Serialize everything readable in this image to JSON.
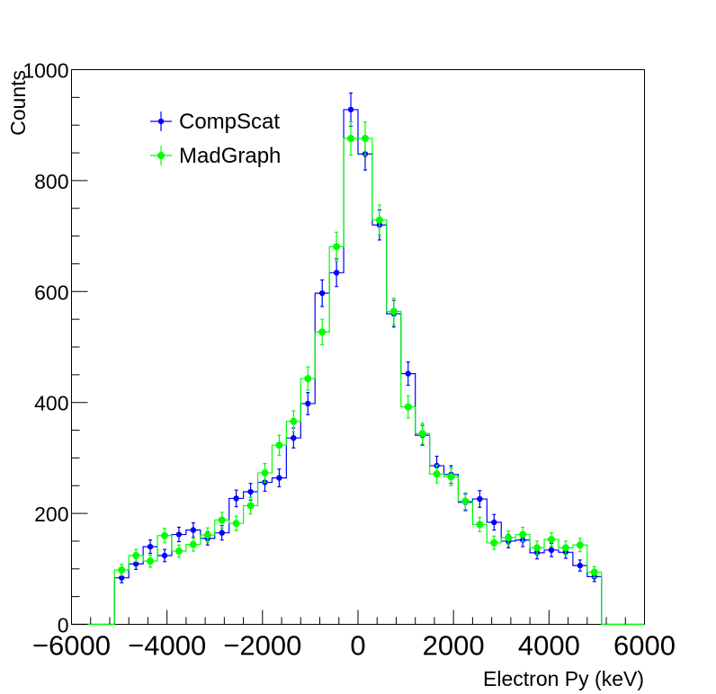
{
  "chart_data": {
    "type": "histogram",
    "title": "",
    "xlabel": "Electron Py (keV)",
    "ylabel": "Counts",
    "xlim": [
      -6000,
      6000
    ],
    "ylim": [
      0,
      1000
    ],
    "x_ticks": [
      -6000,
      -4000,
      -2000,
      0,
      2000,
      4000,
      6000
    ],
    "x_tick_labels": [
      "−6000",
      "−4000",
      "−2000",
      "0",
      "2000",
      "4000",
      "6000"
    ],
    "y_ticks": [
      0,
      200,
      400,
      600,
      800,
      1000
    ],
    "y_tick_labels": [
      "0",
      "200",
      "400",
      "600",
      "800",
      "1000"
    ],
    "bin_edges": [
      -5100,
      -4800,
      -4500,
      -4200,
      -3900,
      -3600,
      -3300,
      -3000,
      -2700,
      -2400,
      -2100,
      -1800,
      -1500,
      -1200,
      -900,
      -600,
      -300,
      0,
      300,
      600,
      900,
      1200,
      1500,
      1800,
      2100,
      2400,
      2700,
      3000,
      3300,
      3600,
      3900,
      4200,
      4500,
      4800,
      5100
    ],
    "legend_position": "top-left",
    "grid": false,
    "series": [
      {
        "name": "CompScat",
        "color": "#0000ff",
        "marker": "filled-circle",
        "values": [
          84,
          109,
          140,
          124,
          162,
          170,
          155,
          165,
          227,
          239,
          256,
          264,
          336,
          398,
          597,
          634,
          928,
          848,
          720,
          560,
          452,
          341,
          286,
          270,
          220,
          226,
          184,
          150,
          152,
          129,
          134,
          130,
          106,
          86
        ],
        "errors": [
          9,
          10,
          12,
          11,
          13,
          13,
          12,
          13,
          15,
          15,
          16,
          16,
          18,
          20,
          24,
          25,
          30,
          29,
          27,
          24,
          21,
          18,
          17,
          16,
          15,
          15,
          14,
          12,
          12,
          11,
          12,
          11,
          10,
          9
        ]
      },
      {
        "name": "MadGraph",
        "color": "#00ff00",
        "marker": "filled-circle",
        "values": [
          98,
          124,
          114,
          160,
          132,
          144,
          161,
          188,
          182,
          214,
          273,
          323,
          366,
          443,
          527,
          681,
          876,
          876,
          729,
          564,
          392,
          344,
          271,
          266,
          222,
          180,
          147,
          156,
          162,
          138,
          153,
          138,
          143,
          94
        ],
        "errors": [
          10,
          11,
          11,
          13,
          11,
          12,
          13,
          14,
          13,
          15,
          17,
          18,
          19,
          21,
          23,
          26,
          30,
          30,
          27,
          24,
          20,
          19,
          16,
          16,
          15,
          13,
          12,
          12,
          13,
          12,
          12,
          12,
          12,
          10
        ]
      }
    ]
  }
}
